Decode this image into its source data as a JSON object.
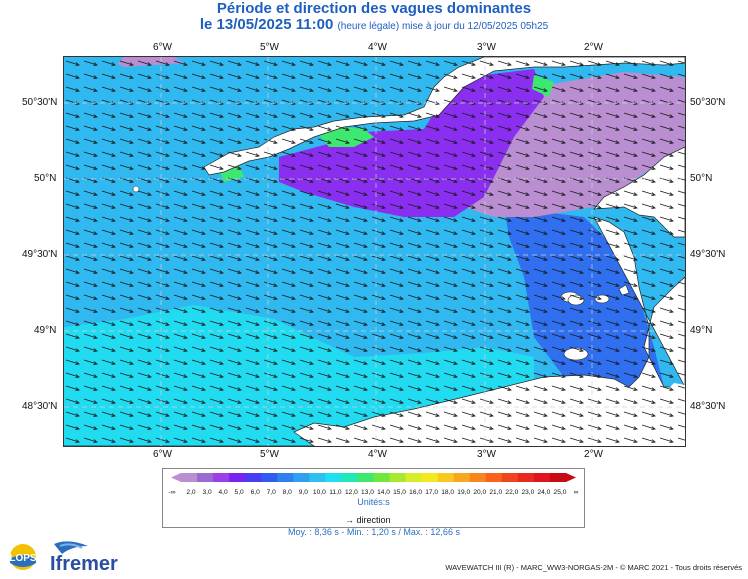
{
  "header": {
    "title": "Période et direction des vagues dominantes",
    "date": "le 13/05/2025 11:00",
    "update": "(heure légale) mise à jour du 12/05/2025 05h25"
  },
  "map": {
    "lon_labels": [
      "6°W",
      "5°W",
      "4°W",
      "3°W",
      "2°W"
    ],
    "lat_labels": [
      "50°30'N",
      "50°N",
      "49°30'N",
      "49°N",
      "48°30'N"
    ],
    "arrow_direction": "east-southeast"
  },
  "legend": {
    "ticks": [
      "2,0",
      "3,0",
      "4,0",
      "5,0",
      "6,0",
      "7,0",
      "8,0",
      "9,0",
      "10,0",
      "11,0",
      "12,0",
      "13,0",
      "14,0",
      "15,0",
      "16,0",
      "17,0",
      "18,0",
      "19,0",
      "20,0",
      "21,0",
      "22,0",
      "23,0",
      "24,0",
      "25,0"
    ],
    "colors": [
      "#b98fd2",
      "#9b6ad0",
      "#9b3fe8",
      "#7a22f0",
      "#4a3cf0",
      "#2f5cf0",
      "#2f7ff0",
      "#2fa0f0",
      "#2fc0f0",
      "#1ee0f0",
      "#22e8b8",
      "#3ce870",
      "#6ee83c",
      "#a8e830",
      "#d8ec2a",
      "#f6e81e",
      "#f8c81e",
      "#f8a81e",
      "#f8861e",
      "#f8641e",
      "#f0441e",
      "#e82a1e",
      "#e0141e",
      "#c80a14"
    ],
    "low_symbol": "-∞",
    "high_symbol": "∞",
    "units": "Unités:s",
    "direction_label": "direction"
  },
  "stats": "Moy. : 8,36 s   -   Min. : 1,20 s / Max. : 12,66 s",
  "logos": {
    "lops": "LOPS",
    "ifremer": "Ifremer"
  },
  "footer": "WAVEWATCH III (R) - MARC_WW3-NORGAS-2M - © MARC 2021 - Tous droits réservés"
}
